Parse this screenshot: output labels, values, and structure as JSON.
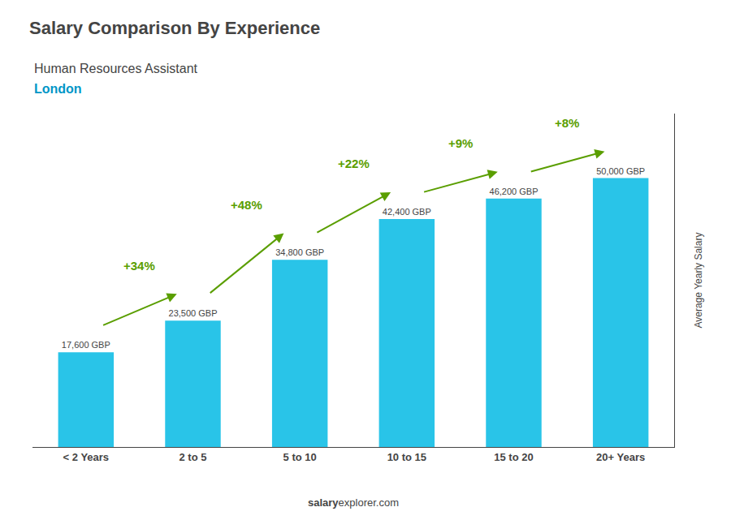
{
  "chart_data": {
    "type": "bar",
    "title": "Salary Comparison By Experience",
    "subtitle": "Human Resources Assistant",
    "location": "London",
    "categories": [
      "< 2 Years",
      "2 to 5",
      "5 to 10",
      "10 to 15",
      "15 to 20",
      "20+ Years"
    ],
    "values": [
      17600,
      23500,
      34800,
      42400,
      46200,
      50000
    ],
    "value_labels": [
      "17,600 GBP",
      "23,500 GBP",
      "34,800 GBP",
      "42,400 GBP",
      "46,200 GBP",
      "50,000 GBP"
    ],
    "data_labels": true,
    "annotations": [
      "+34%",
      "+48%",
      "+22%",
      "+9%",
      "+8%"
    ],
    "color": "#29C4E8",
    "ylabel": "Average Yearly Salary",
    "ylim": [
      0,
      62000
    ],
    "tick_labels": "x",
    "grid": false,
    "footer": {
      "bold": "salary",
      "regular": "explorer.com"
    }
  }
}
